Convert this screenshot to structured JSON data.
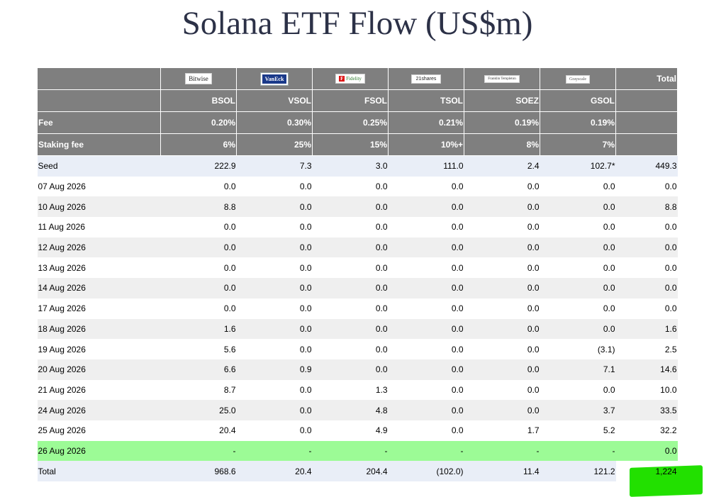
{
  "title": "Solana ETF Flow (US$m)",
  "colors": {
    "header_bg": "#7f7f7f",
    "seed_bg": "#e9eef7",
    "alt_bg": "#efefef",
    "latest_bg": "#9cfb96",
    "negative": "#e00000",
    "zero_text": "#c9c9c9",
    "highlight": "#22e000"
  },
  "chart_data": {
    "type": "table",
    "issuers": [
      "Bitwise",
      "VanEck",
      "Fidelity",
      "21shares",
      "Franklin Templeton",
      "Grayscale"
    ],
    "total_label": "Total",
    "tickers": [
      "BSOL",
      "VSOL",
      "FSOL",
      "TSOL",
      "SOEZ",
      "GSOL"
    ],
    "fee_label": "Fee",
    "fees": [
      "0.20%",
      "0.30%",
      "0.25%",
      "0.21%",
      "0.19%",
      "0.19%"
    ],
    "staking_label": "Staking fee",
    "staking_fees": [
      "6%",
      "25%",
      "15%",
      "10%+",
      "8%",
      "7%"
    ],
    "rows": [
      {
        "label": "Seed",
        "values": [
          "222.9",
          "7.3",
          "3.0",
          "111.0",
          "2.4",
          "102.7*"
        ],
        "total": "449.3"
      },
      {
        "label": "07 Aug 2026",
        "values": [
          "0.0",
          "0.0",
          "0.0",
          "0.0",
          "0.0",
          "0.0"
        ],
        "total": "0.0"
      },
      {
        "label": "10 Aug 2026",
        "values": [
          "8.8",
          "0.0",
          "0.0",
          "0.0",
          "0.0",
          "0.0"
        ],
        "total": "8.8"
      },
      {
        "label": "11 Aug 2026",
        "values": [
          "0.0",
          "0.0",
          "0.0",
          "0.0",
          "0.0",
          "0.0"
        ],
        "total": "0.0"
      },
      {
        "label": "12 Aug 2026",
        "values": [
          "0.0",
          "0.0",
          "0.0",
          "0.0",
          "0.0",
          "0.0"
        ],
        "total": "0.0"
      },
      {
        "label": "13 Aug 2026",
        "values": [
          "0.0",
          "0.0",
          "0.0",
          "0.0",
          "0.0",
          "0.0"
        ],
        "total": "0.0"
      },
      {
        "label": "14 Aug 2026",
        "values": [
          "0.0",
          "0.0",
          "0.0",
          "0.0",
          "0.0",
          "0.0"
        ],
        "total": "0.0"
      },
      {
        "label": "17 Aug 2026",
        "values": [
          "0.0",
          "0.0",
          "0.0",
          "0.0",
          "0.0",
          "0.0"
        ],
        "total": "0.0"
      },
      {
        "label": "18 Aug 2026",
        "values": [
          "1.6",
          "0.0",
          "0.0",
          "0.0",
          "0.0",
          "0.0"
        ],
        "total": "1.6"
      },
      {
        "label": "19 Aug 2026",
        "values": [
          "5.6",
          "0.0",
          "0.0",
          "0.0",
          "0.0",
          "(3.1)"
        ],
        "total": "2.5"
      },
      {
        "label": "20 Aug 2026",
        "values": [
          "6.6",
          "0.9",
          "0.0",
          "0.0",
          "0.0",
          "7.1"
        ],
        "total": "14.6"
      },
      {
        "label": "21 Aug 2026",
        "values": [
          "8.7",
          "0.0",
          "1.3",
          "0.0",
          "0.0",
          "0.0"
        ],
        "total": "10.0"
      },
      {
        "label": "24 Aug 2026",
        "values": [
          "25.0",
          "0.0",
          "4.8",
          "0.0",
          "0.0",
          "3.7"
        ],
        "total": "33.5"
      },
      {
        "label": "25 Aug 2026",
        "values": [
          "20.4",
          "0.0",
          "4.9",
          "0.0",
          "1.7",
          "5.2"
        ],
        "total": "32.2"
      },
      {
        "label": "26 Aug 2026",
        "values": [
          "-",
          "-",
          "-",
          "-",
          "-",
          "-"
        ],
        "total": "0.0",
        "latest": true
      }
    ],
    "totals": {
      "label": "Total",
      "values": [
        "968.6",
        "20.4",
        "204.4",
        "(102.0)",
        "11.4",
        "121.2"
      ],
      "total": "1,224"
    }
  }
}
